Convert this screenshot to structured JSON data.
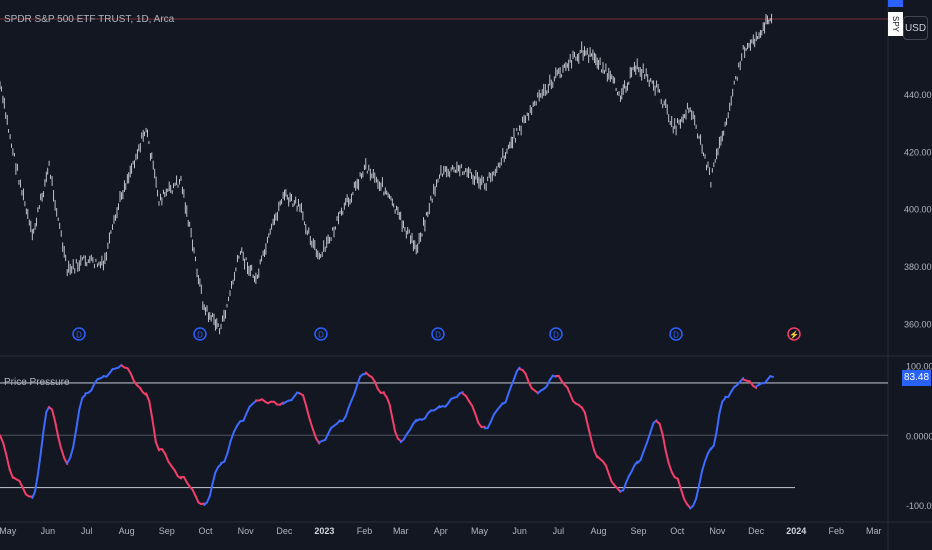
{
  "header": {
    "symbol_title": "SPDR S&P 500 ETF TRUST, 1D, Arca",
    "symbol": "SPY",
    "currency": "USD"
  },
  "indicator": {
    "name": "Price Pressure",
    "last_value": "83.48"
  },
  "chart_data": [
    {
      "type": "line",
      "title": "SPDR S&P 500 ETF TRUST, 1D, Arca",
      "xlabel": "",
      "ylabel": "",
      "x": [
        "2022-04-25",
        "2022-05-05",
        "2022-05-20",
        "2022-06-02",
        "2022-06-16",
        "2022-06-30",
        "2022-07-14",
        "2022-07-28",
        "2022-08-16",
        "2022-08-26",
        "2022-09-12",
        "2022-09-30",
        "2022-10-13",
        "2022-10-28",
        "2022-11-09",
        "2022-11-30",
        "2022-12-13",
        "2022-12-28",
        "2023-01-13",
        "2023-02-02",
        "2023-02-16",
        "2023-03-01",
        "2023-03-13",
        "2023-03-31",
        "2023-04-18",
        "2023-05-05",
        "2023-05-19",
        "2023-06-01",
        "2023-06-15",
        "2023-06-29",
        "2023-07-19",
        "2023-07-31",
        "2023-08-18",
        "2023-08-31",
        "2023-09-15",
        "2023-09-29",
        "2023-10-11",
        "2023-10-27",
        "2023-11-07",
        "2023-11-21",
        "2023-12-01",
        "2023-12-14"
      ],
      "series": [
        {
          "values": [
            443,
            420,
            390,
            415,
            378,
            382,
            380,
            405,
            428,
            403,
            410,
            365,
            358,
            385,
            375,
            405,
            400,
            382,
            397,
            415,
            407,
            396,
            386,
            412,
            414,
            408,
            418,
            428,
            438,
            446,
            455,
            452,
            440,
            450,
            442,
            428,
            436,
            410,
            430,
            455,
            460,
            468
          ]
        }
      ],
      "ylim": [
        350,
        470
      ],
      "yticks": [
        360,
        380,
        400,
        420,
        440
      ],
      "xticks": [
        "May",
        "Jun",
        "Jul",
        "Aug",
        "Sep",
        "Oct",
        "Nov",
        "Dec",
        "2023",
        "Feb",
        "Mar",
        "Apr",
        "May",
        "Jun",
        "Jul",
        "Aug",
        "Sep",
        "Oct",
        "Nov",
        "Dec",
        "2024",
        "Feb",
        "Mar"
      ],
      "grid": false,
      "markers": [
        "D",
        "D",
        "D",
        "D",
        "D",
        "D",
        "⚡"
      ]
    },
    {
      "type": "line",
      "title": "Price Pressure",
      "xlabel": "",
      "ylabel": "",
      "x": [
        "2022-04-25",
        "2022-05-05",
        "2022-05-20",
        "2022-06-02",
        "2022-06-16",
        "2022-06-30",
        "2022-07-14",
        "2022-07-28",
        "2022-08-16",
        "2022-08-26",
        "2022-09-12",
        "2022-09-30",
        "2022-10-13",
        "2022-10-28",
        "2022-11-09",
        "2022-11-30",
        "2022-12-13",
        "2022-12-28",
        "2023-01-13",
        "2023-02-02",
        "2023-02-16",
        "2023-03-01",
        "2023-03-13",
        "2023-03-31",
        "2023-04-18",
        "2023-05-05",
        "2023-05-19",
        "2023-06-01",
        "2023-06-15",
        "2023-06-29",
        "2023-07-19",
        "2023-07-31",
        "2023-08-18",
        "2023-08-31",
        "2023-09-15",
        "2023-09-29",
        "2023-10-11",
        "2023-10-27",
        "2023-11-07",
        "2023-11-21",
        "2023-12-01",
        "2023-12-14"
      ],
      "series": [
        {
          "values": [
            0,
            -60,
            -90,
            40,
            -40,
            60,
            85,
            100,
            60,
            -20,
            -60,
            -100,
            -40,
            20,
            50,
            45,
            60,
            -10,
            20,
            90,
            60,
            -10,
            20,
            40,
            60,
            10,
            45,
            95,
            60,
            85,
            40,
            -30,
            -80,
            -40,
            20,
            -60,
            -105,
            -20,
            55,
            80,
            70,
            83.48
          ]
        }
      ],
      "ylim": [
        -110,
        105
      ],
      "yticks": [
        -100,
        0,
        100
      ],
      "ytick_labels": [
        "-100.00",
        "0.0000",
        "100.00"
      ],
      "levels": [
        75,
        -75
      ],
      "colors": {
        "up": "#3d6bff",
        "down": "#f23f6a"
      },
      "grid": false
    }
  ]
}
